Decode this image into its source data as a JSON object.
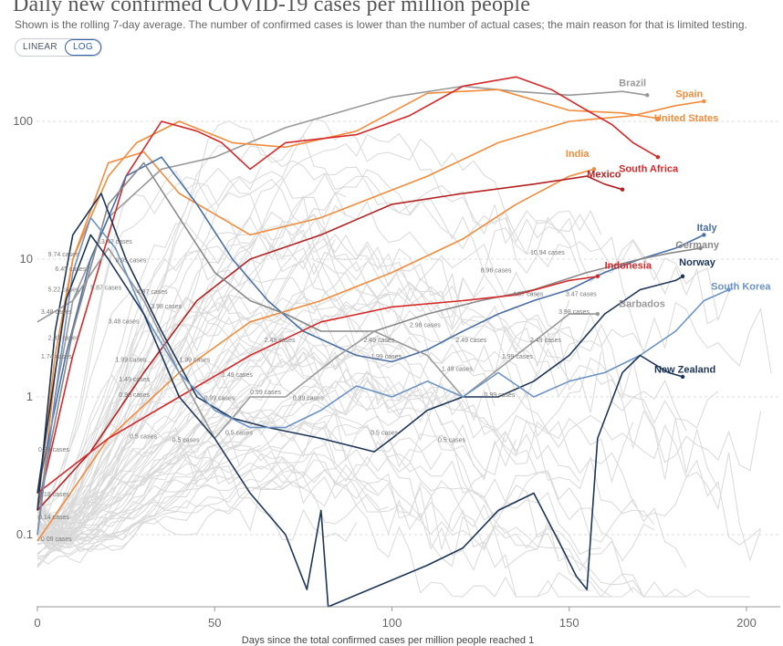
{
  "header": {
    "title": "Daily new confirmed COVID-19 cases per million people",
    "subtitle": "Shown is the rolling 7-day average. The number of confirmed cases is lower than the number of actual cases; the main reason for that is limited testing.",
    "scale_buttons": [
      {
        "label": "LINEAR",
        "active": false
      },
      {
        "label": "LOG",
        "active": true
      }
    ]
  },
  "chart_data": {
    "type": "line",
    "title": "Daily new confirmed COVID-19 cases per million people",
    "xlabel": "Days since the total confirmed cases per million people reached 1",
    "ylabel": "",
    "yscale": "log",
    "xlim": [
      0,
      210
    ],
    "ylim": [
      0.03,
      250
    ],
    "xticks": [
      0,
      50,
      100,
      150,
      200
    ],
    "yticks": [
      {
        "value": 0.1,
        "label": "0.1"
      },
      {
        "value": 1,
        "label": "1"
      },
      {
        "value": 10,
        "label": "10"
      },
      {
        "value": 100,
        "label": "100"
      }
    ],
    "series": [
      {
        "name": "Brazil",
        "color": "#999999",
        "highlight": true,
        "points": [
          [
            0,
            0.1
          ],
          [
            5,
            1
          ],
          [
            10,
            5
          ],
          [
            20,
            20
          ],
          [
            35,
            45
          ],
          [
            50,
            55
          ],
          [
            70,
            90
          ],
          [
            100,
            150
          ],
          [
            120,
            180
          ],
          [
            135,
            165
          ],
          [
            150,
            155
          ],
          [
            165,
            165
          ],
          [
            172,
            155
          ]
        ]
      },
      {
        "name": "Spain",
        "color": "#f28c3c",
        "highlight": true,
        "points": [
          [
            0,
            0.1
          ],
          [
            5,
            1.5
          ],
          [
            10,
            10
          ],
          [
            20,
            50
          ],
          [
            30,
            60
          ],
          [
            40,
            30
          ],
          [
            60,
            15
          ],
          [
            80,
            20
          ],
          [
            110,
            40
          ],
          [
            130,
            70
          ],
          [
            150,
            100
          ],
          [
            168,
            110
          ],
          [
            180,
            130
          ],
          [
            188,
            140
          ]
        ]
      },
      {
        "name": "United States",
        "color": "#f28c3c",
        "highlight": true,
        "points": [
          [
            0,
            0.15
          ],
          [
            5,
            2
          ],
          [
            10,
            10
          ],
          [
            20,
            40
          ],
          [
            28,
            70
          ],
          [
            40,
            100
          ],
          [
            55,
            70
          ],
          [
            70,
            65
          ],
          [
            90,
            85
          ],
          [
            110,
            160
          ],
          [
            130,
            170
          ],
          [
            150,
            120
          ],
          [
            165,
            115
          ],
          [
            175,
            105
          ]
        ]
      },
      {
        "name": "India",
        "color": "#f28c3c",
        "highlight": true,
        "points": [
          [
            0,
            0.09
          ],
          [
            20,
            0.5
          ],
          [
            40,
            1.5
          ],
          [
            60,
            3.5
          ],
          [
            80,
            5
          ],
          [
            100,
            8
          ],
          [
            120,
            14
          ],
          [
            135,
            25
          ],
          [
            150,
            40
          ],
          [
            157,
            45
          ]
        ]
      },
      {
        "name": "South Africa",
        "color": "#d62828",
        "highlight": true,
        "points": [
          [
            0,
            0.15
          ],
          [
            10,
            2
          ],
          [
            25,
            40
          ],
          [
            35,
            100
          ],
          [
            45,
            85
          ],
          [
            52,
            70
          ],
          [
            60,
            45
          ],
          [
            70,
            70
          ],
          [
            90,
            80
          ],
          [
            105,
            110
          ],
          [
            120,
            180
          ],
          [
            135,
            210
          ],
          [
            145,
            170
          ],
          [
            155,
            120
          ],
          [
            162,
            95
          ],
          [
            168,
            70
          ],
          [
            175,
            55
          ]
        ]
      },
      {
        "name": "Mexico",
        "color": "#b32121",
        "highlight": true,
        "points": [
          [
            0,
            0.15
          ],
          [
            15,
            0.4
          ],
          [
            30,
            1.5
          ],
          [
            45,
            5
          ],
          [
            60,
            10
          ],
          [
            80,
            15
          ],
          [
            100,
            25
          ],
          [
            120,
            30
          ],
          [
            140,
            35
          ],
          [
            155,
            40
          ],
          [
            160,
            35
          ],
          [
            165,
            32
          ]
        ]
      },
      {
        "name": "Italy",
        "color": "#4a6fa5",
        "highlight": true,
        "points": [
          [
            0,
            0.2
          ],
          [
            8,
            2
          ],
          [
            15,
            10
          ],
          [
            25,
            40
          ],
          [
            35,
            55
          ],
          [
            45,
            25
          ],
          [
            55,
            10
          ],
          [
            65,
            5
          ],
          [
            75,
            3
          ],
          [
            90,
            2
          ],
          [
            100,
            1.8
          ],
          [
            110,
            2.2
          ],
          [
            120,
            3
          ],
          [
            130,
            4
          ],
          [
            140,
            5
          ],
          [
            150,
            6
          ],
          [
            160,
            8
          ],
          [
            170,
            10
          ],
          [
            180,
            12
          ],
          [
            188,
            15
          ]
        ]
      },
      {
        "name": "Germany",
        "color": "#888888",
        "highlight": true,
        "points": [
          [
            0,
            0.15
          ],
          [
            10,
            3
          ],
          [
            20,
            25
          ],
          [
            30,
            50
          ],
          [
            40,
            20
          ],
          [
            50,
            8
          ],
          [
            60,
            5
          ],
          [
            70,
            4
          ],
          [
            80,
            3
          ],
          [
            95,
            3
          ],
          [
            110,
            4
          ],
          [
            125,
            5
          ],
          [
            140,
            6
          ],
          [
            155,
            8
          ],
          [
            170,
            10
          ],
          [
            178,
            11
          ],
          [
            187,
            12
          ]
        ]
      },
      {
        "name": "Indonesia",
        "color": "#d62828",
        "highlight": true,
        "points": [
          [
            0,
            0.2
          ],
          [
            20,
            0.5
          ],
          [
            40,
            1
          ],
          [
            60,
            2
          ],
          [
            80,
            3.5
          ],
          [
            100,
            4.5
          ],
          [
            120,
            5
          ],
          [
            135,
            5.5
          ],
          [
            150,
            7
          ],
          [
            158,
            7.5
          ]
        ]
      },
      {
        "name": "Norway",
        "color": "#1d3557",
        "highlight": true,
        "points": [
          [
            0,
            0.15
          ],
          [
            5,
            3
          ],
          [
            10,
            15
          ],
          [
            18,
            30
          ],
          [
            25,
            10
          ],
          [
            35,
            3
          ],
          [
            45,
            1
          ],
          [
            55,
            0.7
          ],
          [
            65,
            0.6
          ],
          [
            80,
            0.5
          ],
          [
            95,
            0.4
          ],
          [
            100,
            0.5
          ],
          [
            110,
            0.8
          ],
          [
            120,
            1
          ],
          [
            130,
            1
          ],
          [
            140,
            1.3
          ],
          [
            150,
            2
          ],
          [
            160,
            4
          ],
          [
            170,
            6
          ],
          [
            180,
            7
          ],
          [
            182,
            7.5
          ]
        ]
      },
      {
        "name": "Barbados",
        "color": "#999999",
        "highlight": true,
        "points": [
          [
            0,
            3.5
          ],
          [
            10,
            5
          ],
          [
            20,
            12
          ],
          [
            30,
            5
          ],
          [
            40,
            1.5
          ],
          [
            50,
            0.5
          ],
          [
            60,
            1
          ],
          [
            70,
            1
          ],
          [
            85,
            2
          ],
          [
            95,
            3
          ],
          [
            110,
            2
          ],
          [
            120,
            1
          ],
          [
            135,
            2
          ],
          [
            150,
            4
          ],
          [
            158,
            4
          ]
        ]
      },
      {
        "name": "South Korea",
        "color": "#6b93c6",
        "highlight": true,
        "points": [
          [
            0,
            0.1
          ],
          [
            5,
            1
          ],
          [
            10,
            8
          ],
          [
            15,
            20
          ],
          [
            22,
            12
          ],
          [
            30,
            4
          ],
          [
            40,
            1.5
          ],
          [
            50,
            0.8
          ],
          [
            60,
            0.6
          ],
          [
            70,
            0.6
          ],
          [
            80,
            0.8
          ],
          [
            90,
            1.2
          ],
          [
            100,
            1
          ],
          [
            110,
            1.3
          ],
          [
            120,
            1
          ],
          [
            130,
            1.5
          ],
          [
            140,
            1
          ],
          [
            150,
            1.3
          ],
          [
            160,
            1.5
          ],
          [
            170,
            2
          ],
          [
            180,
            3
          ],
          [
            188,
            5
          ],
          [
            195,
            6
          ]
        ]
      },
      {
        "name": "New Zealand",
        "color": "#1d3557",
        "highlight": true,
        "points": [
          [
            0,
            0.2
          ],
          [
            8,
            5
          ],
          [
            15,
            15
          ],
          [
            20,
            10
          ],
          [
            30,
            4
          ],
          [
            40,
            1
          ],
          [
            50,
            0.5
          ],
          [
            60,
            0.2
          ],
          [
            70,
            0.1
          ],
          [
            76,
            0.04
          ],
          [
            80,
            0.15
          ],
          [
            82,
            0.03
          ],
          [
            110,
            0.06
          ],
          [
            120,
            0.08
          ],
          [
            130,
            0.15
          ],
          [
            140,
            0.2
          ],
          [
            148,
            0.08
          ],
          [
            152,
            0.05
          ],
          [
            155,
            0.04
          ],
          [
            158,
            0.5
          ],
          [
            165,
            1.5
          ],
          [
            170,
            2
          ],
          [
            178,
            1.5
          ],
          [
            182,
            1.4
          ]
        ]
      }
    ],
    "series_labels": [
      {
        "series": "Brazil",
        "text": "Brazil",
        "x": 164,
        "y": 180
      },
      {
        "series": "Spain",
        "text": "Spain",
        "x": 180,
        "y": 150
      },
      {
        "series": "United States",
        "text": "United States",
        "x": 174,
        "y": 100
      },
      {
        "series": "India",
        "text": "India",
        "x": 149,
        "y": 55
      },
      {
        "series": "South Africa",
        "text": "South Africa",
        "x": 164,
        "y": 43
      },
      {
        "series": "Mexico",
        "text": "Mexico",
        "x": 155,
        "y": 39
      },
      {
        "series": "Italy",
        "text": "Italy",
        "x": 186,
        "y": 16
      },
      {
        "series": "Germany",
        "text": "Germany",
        "x": 180,
        "y": 12
      },
      {
        "series": "Indonesia",
        "text": "Indonesia",
        "x": 160,
        "y": 8.5
      },
      {
        "series": "Norway",
        "text": "Norway",
        "x": 181,
        "y": 9
      },
      {
        "series": "South Korea",
        "text": "South Korea",
        "x": 190,
        "y": 6
      },
      {
        "series": "Barbados",
        "text": "Barbados",
        "x": 164,
        "y": 4.5
      },
      {
        "series": "New Zealand",
        "text": "New Zealand",
        "x": 174,
        "y": 1.5
      }
    ],
    "case_annotations": [
      {
        "text": "9.74 cases",
        "x": 3,
        "y": 10.5
      },
      {
        "text": "6.45 cases",
        "x": 5,
        "y": 8.2
      },
      {
        "text": "5.22 cases",
        "x": 3,
        "y": 5.8
      },
      {
        "text": "3.48 cases",
        "x": 1,
        "y": 4
      },
      {
        "text": "2.32 cases",
        "x": 3,
        "y": 2.6
      },
      {
        "text": "1.74 cases",
        "x": 1,
        "y": 1.9
      },
      {
        "text": "0.39 cases",
        "x": -1,
        "y": 0.4
      },
      {
        "text": "0.18 cases",
        "x": 0,
        "y": 0.19
      },
      {
        "text": "0.14 cases",
        "x": 0,
        "y": 0.13
      },
      {
        "text": "0.09 cases",
        "x": 1,
        "y": 0.09
      },
      {
        "text": "13.42 cases",
        "x": 17,
        "y": 13
      },
      {
        "text": "8.95 cases",
        "x": 22,
        "y": 9.5
      },
      {
        "text": "5.87 cases",
        "x": 15,
        "y": 6
      },
      {
        "text": "4.97 cases",
        "x": 28,
        "y": 5.6
      },
      {
        "text": "3.98 cases",
        "x": 32,
        "y": 4.4
      },
      {
        "text": "3.48 cases",
        "x": 20,
        "y": 3.4
      },
      {
        "text": "1.99 cases",
        "x": 22,
        "y": 1.8
      },
      {
        "text": "1.49 cases",
        "x": 23,
        "y": 1.3
      },
      {
        "text": "0.99 cases",
        "x": 23,
        "y": 1
      },
      {
        "text": "0.5 cases",
        "x": 26,
        "y": 0.5
      },
      {
        "text": "0.5 cases",
        "x": 38,
        "y": 0.47
      },
      {
        "text": "1.99 cases",
        "x": 40,
        "y": 1.8
      },
      {
        "text": "1.49 cases",
        "x": 52,
        "y": 1.4
      },
      {
        "text": "0.99 cases",
        "x": 47,
        "y": 0.95
      },
      {
        "text": "0.5 cases",
        "x": 53,
        "y": 0.53
      },
      {
        "text": "2.49 cases",
        "x": 64,
        "y": 2.5
      },
      {
        "text": "0.99 cases",
        "x": 60,
        "y": 1.05
      },
      {
        "text": "0.99 cases",
        "x": 72,
        "y": 0.95
      },
      {
        "text": "2.49 cases",
        "x": 92,
        "y": 2.5
      },
      {
        "text": "1.99 cases",
        "x": 94,
        "y": 1.9
      },
      {
        "text": "0.5 cases",
        "x": 94,
        "y": 0.53
      },
      {
        "text": "2.98 cases",
        "x": 105,
        "y": 3.2
      },
      {
        "text": "1.49 cases",
        "x": 114,
        "y": 1.55
      },
      {
        "text": "0.5 cases",
        "x": 113,
        "y": 0.47
      },
      {
        "text": "2.49 cases",
        "x": 118,
        "y": 2.5
      },
      {
        "text": "8.96 cases",
        "x": 125,
        "y": 8
      },
      {
        "text": "0.99 cases",
        "x": 126,
        "y": 1
      },
      {
        "text": "1.99 cases",
        "x": 131,
        "y": 1.9
      },
      {
        "text": "2.49 cases",
        "x": 139,
        "y": 2.5
      },
      {
        "text": "4.97 cases",
        "x": 134,
        "y": 5.4
      },
      {
        "text": "10.94 cases",
        "x": 139,
        "y": 10.8
      },
      {
        "text": "3.98 cases",
        "x": 147,
        "y": 4
      },
      {
        "text": "3.47 cases",
        "x": 149,
        "y": 5.4
      }
    ]
  }
}
